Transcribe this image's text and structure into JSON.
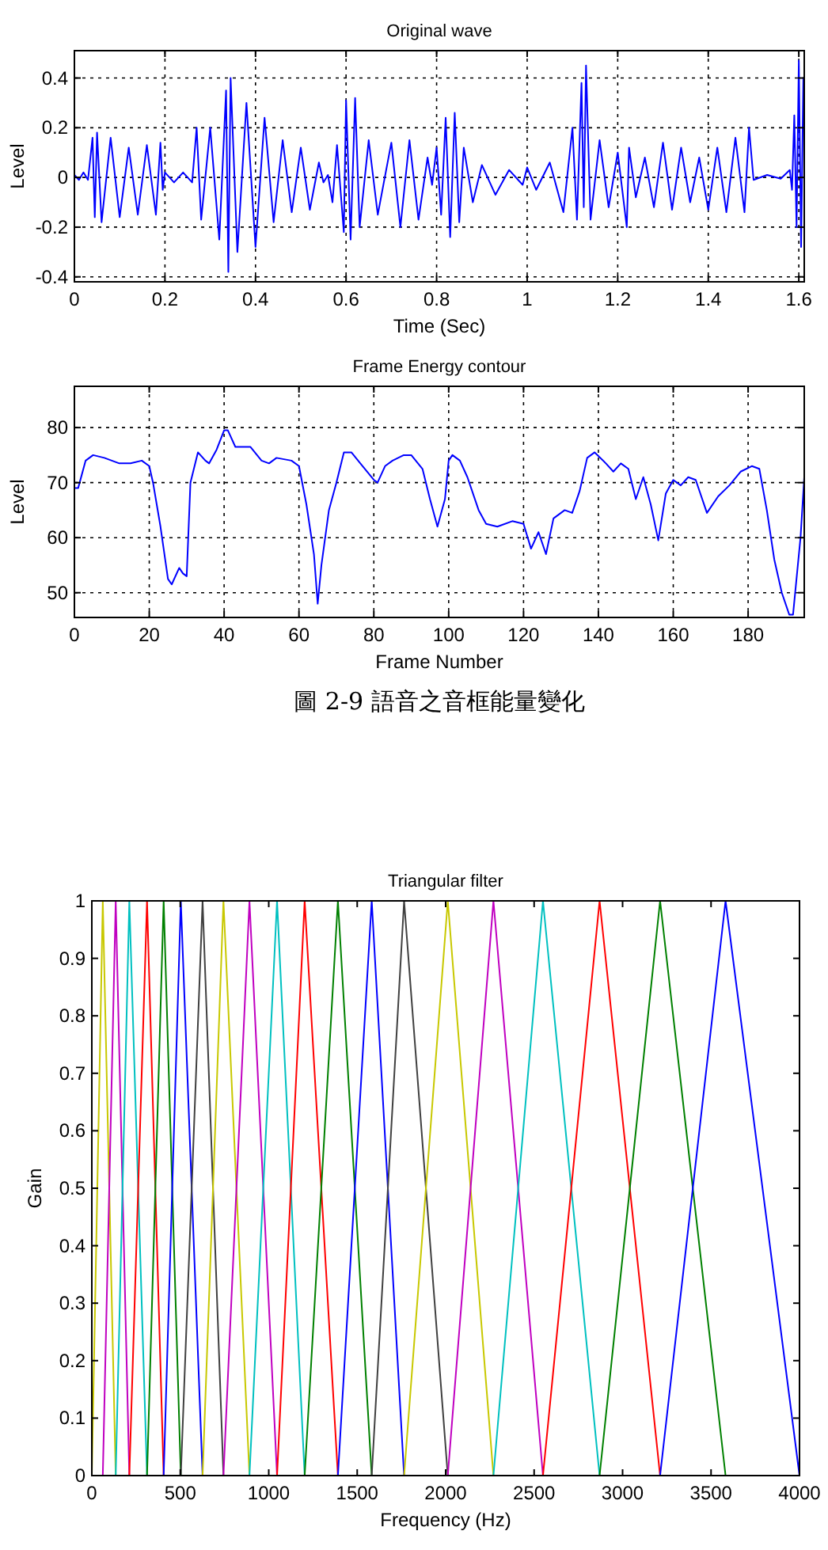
{
  "chart_data": [
    {
      "type": "line",
      "title": "Original wave",
      "xlabel": "Time (Sec)",
      "ylabel": "Level",
      "xlim": [
        0,
        1.612
      ],
      "ylim": [
        -0.42,
        0.51
      ],
      "xticks": [
        0,
        0.2,
        0.4,
        0.6,
        0.8,
        1,
        1.2,
        1.4,
        1.6
      ],
      "yticks": [
        -0.4,
        -0.2,
        0,
        0.2,
        0.4
      ],
      "grid": true,
      "x": [
        0,
        0.01,
        0.02,
        0.03,
        0.04,
        0.045,
        0.05,
        0.06,
        0.08,
        0.1,
        0.12,
        0.14,
        0.16,
        0.18,
        0.19,
        0.195,
        0.2,
        0.22,
        0.24,
        0.26,
        0.27,
        0.28,
        0.3,
        0.32,
        0.335,
        0.34,
        0.345,
        0.36,
        0.38,
        0.4,
        0.42,
        0.44,
        0.46,
        0.48,
        0.5,
        0.52,
        0.54,
        0.55,
        0.56,
        0.57,
        0.58,
        0.595,
        0.6,
        0.61,
        0.62,
        0.63,
        0.65,
        0.67,
        0.7,
        0.72,
        0.74,
        0.76,
        0.78,
        0.79,
        0.8,
        0.81,
        0.82,
        0.83,
        0.84,
        0.85,
        0.86,
        0.88,
        0.9,
        0.93,
        0.96,
        0.99,
        1.0,
        1.02,
        1.05,
        1.08,
        1.1,
        1.11,
        1.12,
        1.125,
        1.13,
        1.14,
        1.16,
        1.18,
        1.2,
        1.22,
        1.225,
        1.24,
        1.26,
        1.28,
        1.3,
        1.32,
        1.34,
        1.36,
        1.38,
        1.4,
        1.42,
        1.44,
        1.46,
        1.48,
        1.49,
        1.5,
        1.53,
        1.56,
        1.58,
        1.585,
        1.59,
        1.595,
        1.6,
        1.605,
        1.61
      ],
      "series": [
        {
          "color": "#0000ff",
          "values": [
            0.01,
            -0.01,
            0.02,
            -0.01,
            0.16,
            -0.16,
            0.18,
            -0.18,
            0.16,
            -0.16,
            0.12,
            -0.15,
            0.13,
            -0.15,
            0.14,
            -0.05,
            0.02,
            -0.02,
            0.02,
            -0.02,
            0.2,
            -0.17,
            0.2,
            -0.25,
            0.35,
            -0.38,
            0.4,
            -0.3,
            0.3,
            -0.28,
            0.24,
            -0.18,
            0.15,
            -0.14,
            0.12,
            -0.13,
            0.06,
            -0.02,
            0.01,
            -0.1,
            0.13,
            -0.22,
            0.31,
            -0.25,
            0.32,
            -0.2,
            0.15,
            -0.15,
            0.14,
            -0.2,
            0.15,
            -0.17,
            0.08,
            -0.03,
            0.12,
            -0.15,
            0.24,
            -0.24,
            0.26,
            -0.18,
            0.12,
            -0.1,
            0.05,
            -0.07,
            0.03,
            -0.03,
            0.04,
            -0.05,
            0.06,
            -0.14,
            0.2,
            -0.17,
            0.38,
            -0.12,
            0.45,
            -0.17,
            0.15,
            -0.12,
            0.1,
            -0.2,
            0.12,
            -0.08,
            0.08,
            -0.12,
            0.14,
            -0.13,
            0.12,
            -0.1,
            0.08,
            -0.13,
            0.12,
            -0.14,
            0.16,
            -0.14,
            0.2,
            -0.01,
            0.01,
            -0.005,
            0.03,
            -0.05,
            0.25,
            -0.2,
            0.47,
            -0.28,
            0.4
          ]
        }
      ]
    },
    {
      "type": "line",
      "title": "Frame Energy contour",
      "xlabel": "Frame Number",
      "ylabel": "Level",
      "xlim": [
        0,
        195
      ],
      "ylim": [
        45.5,
        87.5
      ],
      "xticks": [
        0,
        20,
        40,
        60,
        80,
        100,
        120,
        140,
        160,
        180
      ],
      "yticks": [
        50,
        60,
        70,
        80
      ],
      "grid": true,
      "annotations": [
        "圖 2-9 語音之音框能量變化"
      ],
      "x": [
        0,
        1,
        3,
        5,
        8,
        12,
        15,
        18,
        20,
        21,
        23,
        25,
        26,
        28,
        29,
        30,
        31,
        33,
        35,
        36,
        38,
        40,
        41,
        43,
        47,
        50,
        52,
        54,
        58,
        60,
        62,
        64,
        65,
        66,
        68,
        70,
        72,
        74,
        77,
        80,
        81,
        83,
        85,
        88,
        90,
        93,
        95,
        97,
        99,
        100,
        101,
        103,
        105,
        108,
        110,
        113,
        117,
        120,
        122,
        124,
        126,
        128,
        131,
        133,
        135,
        137,
        139,
        142,
        144,
        146,
        148,
        150,
        152,
        154,
        156,
        158,
        160,
        162,
        164,
        166,
        169,
        172,
        175,
        178,
        181,
        183,
        185,
        187,
        189,
        191,
        192,
        194,
        195
      ],
      "series": [
        {
          "color": "#0000ff",
          "values": [
            69,
            69,
            74,
            75,
            74.5,
            73.5,
            73.5,
            74,
            73,
            70,
            62,
            52.5,
            51.5,
            54.5,
            53.5,
            53,
            70,
            75.5,
            74,
            73.5,
            76,
            79.5,
            79.5,
            76.5,
            76.5,
            74,
            73.5,
            74.5,
            74,
            73,
            66,
            57,
            48,
            55,
            65,
            70,
            75.5,
            75.5,
            73,
            70.5,
            70,
            73,
            74,
            75,
            75,
            72.5,
            67,
            62,
            67,
            74,
            75,
            74,
            71,
            65,
            62.5,
            62,
            63,
            62.5,
            58,
            61,
            57,
            63.5,
            65,
            64.5,
            68.5,
            74.5,
            75.5,
            73.5,
            72,
            73.5,
            72.5,
            67,
            71,
            66,
            59.5,
            68,
            70.5,
            69.5,
            71,
            70.5,
            64.5,
            67.5,
            69.5,
            72,
            73,
            72.5,
            65,
            56,
            50,
            46,
            46,
            60,
            71
          ]
        }
      ]
    },
    {
      "type": "line",
      "title": "Triangular filter",
      "xlabel": "Frequency (Hz)",
      "ylabel": "Gain",
      "xlim": [
        0,
        4000
      ],
      "ylim": [
        0,
        1
      ],
      "xticks": [
        0,
        500,
        1000,
        1500,
        2000,
        2500,
        3000,
        3500,
        4000
      ],
      "yticks": [
        0,
        0.1,
        0.2,
        0.3,
        0.4,
        0.5,
        0.6,
        0.7,
        0.8,
        0.9,
        1
      ],
      "series": [
        {
          "color": "#c8c800",
          "x": [
            0,
            62,
            135
          ],
          "values": [
            0,
            1,
            0
          ]
        },
        {
          "color": "#c000c0",
          "x": [
            62,
            135,
            212
          ],
          "values": [
            0,
            1,
            0
          ]
        },
        {
          "color": "#00c0c0",
          "x": [
            135,
            212,
            312
          ],
          "values": [
            0,
            1,
            0
          ]
        },
        {
          "color": "#ff0000",
          "x": [
            212,
            312,
            406
          ],
          "values": [
            0,
            1,
            0
          ]
        },
        {
          "color": "#008000",
          "x": [
            312,
            406,
            503
          ],
          "values": [
            0,
            1,
            0
          ]
        },
        {
          "color": "#0000ff",
          "x": [
            406,
            503,
            626
          ],
          "values": [
            0,
            1,
            0
          ]
        },
        {
          "color": "#404040",
          "x": [
            503,
            626,
            744
          ],
          "values": [
            0,
            1,
            0
          ]
        },
        {
          "color": "#c8c800",
          "x": [
            626,
            744,
            891
          ],
          "values": [
            0,
            1,
            0
          ]
        },
        {
          "color": "#c000c0",
          "x": [
            744,
            891,
            1047
          ],
          "values": [
            0,
            1,
            0
          ]
        },
        {
          "color": "#00c0c0",
          "x": [
            891,
            1047,
            1203
          ],
          "values": [
            0,
            1,
            0
          ]
        },
        {
          "color": "#ff0000",
          "x": [
            1047,
            1203,
            1391
          ],
          "values": [
            0,
            1,
            0
          ]
        },
        {
          "color": "#008000",
          "x": [
            1203,
            1391,
            1582
          ],
          "values": [
            0,
            1,
            0
          ]
        },
        {
          "color": "#0000ff",
          "x": [
            1391,
            1582,
            1765
          ],
          "values": [
            0,
            1,
            0
          ]
        },
        {
          "color": "#404040",
          "x": [
            1582,
            1765,
            2012
          ],
          "values": [
            0,
            1,
            0
          ]
        },
        {
          "color": "#c8c800",
          "x": [
            1765,
            2012,
            2270
          ],
          "values": [
            0,
            1,
            0
          ]
        },
        {
          "color": "#c000c0",
          "x": [
            2012,
            2270,
            2550
          ],
          "values": [
            0,
            1,
            0
          ]
        },
        {
          "color": "#00c0c0",
          "x": [
            2270,
            2550,
            2870
          ],
          "values": [
            0,
            1,
            0
          ]
        },
        {
          "color": "#ff0000",
          "x": [
            2550,
            2870,
            3212
          ],
          "values": [
            0,
            1,
            0
          ]
        },
        {
          "color": "#008000",
          "x": [
            2870,
            3212,
            3582
          ],
          "values": [
            0,
            1,
            0
          ]
        },
        {
          "color": "#0000ff",
          "x": [
            3212,
            3582,
            4000
          ],
          "values": [
            0,
            1,
            0
          ]
        }
      ]
    }
  ]
}
